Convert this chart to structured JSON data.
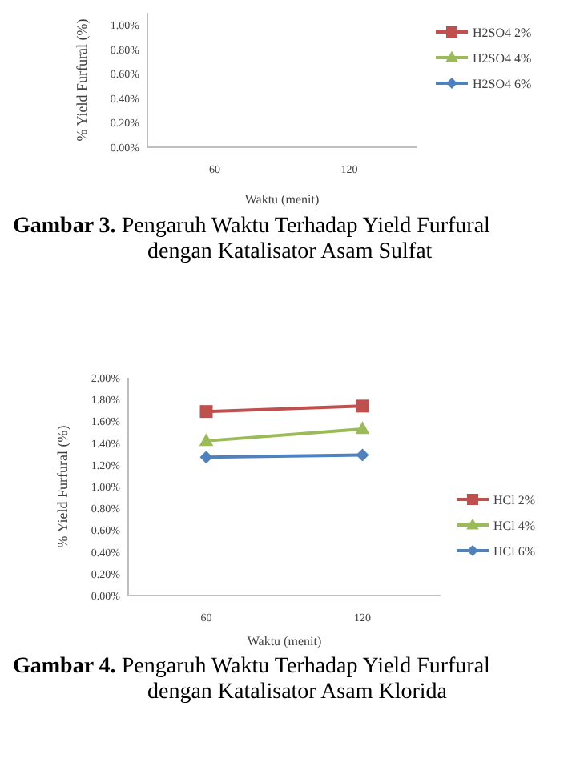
{
  "chart_data": [
    {
      "type": "line",
      "xlabel": "Waktu (menit)",
      "ylabel": "% Yield Furfural (%)",
      "categories": [
        "60",
        "120"
      ],
      "ylim": [
        0,
        1.1
      ],
      "yticks": [
        {
          "value": 0,
          "label": "0.00%"
        },
        {
          "value": 0.2,
          "label": "0.20%"
        },
        {
          "value": 0.4,
          "label": "0.40%"
        },
        {
          "value": 0.6,
          "label": "0.60%"
        },
        {
          "value": 0.8,
          "label": "0.80%"
        },
        {
          "value": 1,
          "label": "1.00%"
        }
      ],
      "grid": false,
      "legend": "right",
      "annotations": [
        "Gambar 3. Pengaruh Waktu Terhadap Yield Furfural dengan Katalisator Asam Sulfat"
      ],
      "series": [
        {
          "name": "H2SO4 2%",
          "color": "#c0504d",
          "marker": "square",
          "values": [
            null,
            null
          ]
        },
        {
          "name": "H2SO4 4%",
          "color": "#9bbb59",
          "marker": "triangle",
          "values": [
            null,
            null
          ]
        },
        {
          "name": "H2SO4 6%",
          "color": "#4f81bd",
          "marker": "diamond",
          "values": [
            null,
            null
          ]
        }
      ]
    },
    {
      "type": "line",
      "xlabel": "Waktu (menit)",
      "ylabel": "% Yield Furfural (%)",
      "categories": [
        "60",
        "120"
      ],
      "ylim": [
        0,
        2
      ],
      "yticks": [
        {
          "value": 0,
          "label": "0.00%"
        },
        {
          "value": 0.2,
          "label": "0.20%"
        },
        {
          "value": 0.4,
          "label": "0.40%"
        },
        {
          "value": 0.6,
          "label": "0.60%"
        },
        {
          "value": 0.8,
          "label": "0.80%"
        },
        {
          "value": 1,
          "label": "1.00%"
        },
        {
          "value": 1.2,
          "label": "1.20%"
        },
        {
          "value": 1.4,
          "label": "1.40%"
        },
        {
          "value": 1.6,
          "label": "1.60%"
        },
        {
          "value": 1.8,
          "label": "1.80%"
        },
        {
          "value": 2,
          "label": "2.00%"
        }
      ],
      "grid": false,
      "legend": "right",
      "annotations": [
        "Gambar 4. Pengaruh Waktu Terhadap Yield Furfural dengan Katalisator Asam Klorida"
      ],
      "series": [
        {
          "name": "HCl 2%",
          "color": "#c0504d",
          "marker": "square",
          "values": [
            1.69,
            1.74
          ]
        },
        {
          "name": "HCl 4%",
          "color": "#9bbb59",
          "marker": "triangle",
          "values": [
            1.42,
            1.53
          ]
        },
        {
          "name": "HCl 6%",
          "color": "#4f81bd",
          "marker": "diamond",
          "values": [
            1.27,
            1.29
          ]
        }
      ]
    }
  ]
}
